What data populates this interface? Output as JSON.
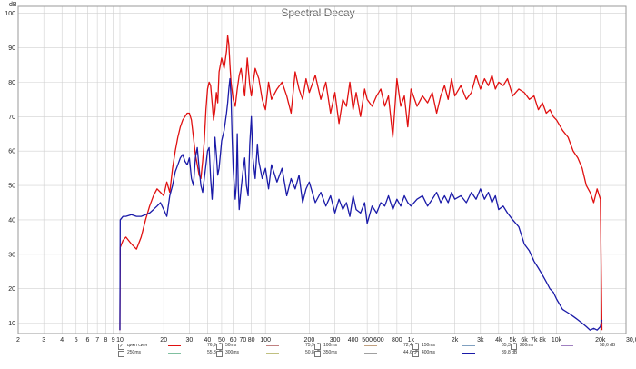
{
  "chart_data": {
    "type": "line",
    "title": "Spectral Decay",
    "xlabel": "",
    "ylabel": "",
    "x_unit": "Hz",
    "y_unit": "dB",
    "x_scale": "log",
    "xlim": [
      2,
      30000
    ],
    "ylim": [
      7,
      102
    ],
    "grid": true,
    "x_ticks": [
      2,
      3,
      4,
      5,
      6,
      7,
      8,
      9,
      10,
      20,
      30,
      40,
      50,
      60,
      70,
      80,
      100,
      200,
      300,
      400,
      500,
      600,
      800,
      1000,
      2000,
      3000,
      4000,
      5000,
      6000,
      7000,
      8000,
      10000,
      20000,
      30000
    ],
    "x_tick_labels": [
      "2",
      "3",
      "4",
      "5",
      "6",
      "7",
      "8",
      "9",
      "10",
      "20",
      "30",
      "40",
      "50",
      "60",
      "70",
      "80",
      "100",
      "200",
      "300",
      "400",
      "500",
      "600",
      "800",
      "1k",
      "2k",
      "3k",
      "4k",
      "5k",
      "6k",
      "7k",
      "8k",
      "10k",
      "20k",
      "30,0k Hz"
    ],
    "y_ticks": [
      10,
      20,
      30,
      40,
      50,
      60,
      70,
      80,
      90,
      100
    ],
    "y_tick_labels": [
      "10",
      "20",
      "30",
      "40",
      "50",
      "60",
      "70",
      "80",
      "90",
      "100"
    ],
    "series": [
      {
        "name": "цикл сигн",
        "color": "#e01010",
        "points": [
          [
            10,
            8
          ],
          [
            10.05,
            32
          ],
          [
            10.5,
            34
          ],
          [
            11,
            35
          ],
          [
            12,
            33
          ],
          [
            13,
            31.5
          ],
          [
            14,
            35
          ],
          [
            15,
            40
          ],
          [
            16,
            44
          ],
          [
            17,
            47
          ],
          [
            18,
            49
          ],
          [
            19,
            48
          ],
          [
            20,
            47
          ],
          [
            21,
            51
          ],
          [
            22,
            48
          ],
          [
            23,
            55
          ],
          [
            24,
            60
          ],
          [
            25,
            64
          ],
          [
            26,
            67
          ],
          [
            27,
            69
          ],
          [
            28,
            70
          ],
          [
            29,
            71
          ],
          [
            30,
            71
          ],
          [
            31,
            69
          ],
          [
            32,
            64
          ],
          [
            33,
            59
          ],
          [
            34,
            56
          ],
          [
            35,
            53
          ],
          [
            36,
            52
          ],
          [
            37,
            57
          ],
          [
            38,
            63
          ],
          [
            39,
            72
          ],
          [
            40,
            78
          ],
          [
            41,
            80
          ],
          [
            42,
            79
          ],
          [
            43,
            74
          ],
          [
            44,
            69
          ],
          [
            45,
            72
          ],
          [
            46,
            77
          ],
          [
            47,
            74
          ],
          [
            48,
            83
          ],
          [
            50,
            87
          ],
          [
            52,
            84
          ],
          [
            54,
            89
          ],
          [
            55,
            93.5
          ],
          [
            56,
            91
          ],
          [
            57,
            85
          ],
          [
            58,
            80
          ],
          [
            60,
            75
          ],
          [
            62,
            73
          ],
          [
            64,
            78
          ],
          [
            66,
            82
          ],
          [
            68,
            84
          ],
          [
            70,
            80
          ],
          [
            72,
            76
          ],
          [
            75,
            87
          ],
          [
            78,
            79
          ],
          [
            80,
            76
          ],
          [
            85,
            84
          ],
          [
            90,
            81
          ],
          [
            95,
            75
          ],
          [
            100,
            72
          ],
          [
            105,
            80
          ],
          [
            110,
            75
          ],
          [
            120,
            78
          ],
          [
            130,
            80
          ],
          [
            140,
            76
          ],
          [
            150,
            71
          ],
          [
            160,
            83
          ],
          [
            170,
            78
          ],
          [
            180,
            75
          ],
          [
            190,
            81
          ],
          [
            200,
            77
          ],
          [
            220,
            82
          ],
          [
            240,
            75
          ],
          [
            260,
            80
          ],
          [
            280,
            71
          ],
          [
            300,
            77
          ],
          [
            320,
            68
          ],
          [
            340,
            75
          ],
          [
            360,
            73
          ],
          [
            380,
            80
          ],
          [
            400,
            72
          ],
          [
            420,
            77
          ],
          [
            450,
            70
          ],
          [
            480,
            78
          ],
          [
            500,
            75
          ],
          [
            540,
            73
          ],
          [
            580,
            76
          ],
          [
            620,
            78
          ],
          [
            660,
            73
          ],
          [
            700,
            76
          ],
          [
            750,
            64
          ],
          [
            800,
            81
          ],
          [
            850,
            73
          ],
          [
            900,
            76
          ],
          [
            950,
            67
          ],
          [
            1000,
            78
          ],
          [
            1100,
            73
          ],
          [
            1200,
            76
          ],
          [
            1300,
            74
          ],
          [
            1400,
            77
          ],
          [
            1500,
            71
          ],
          [
            1600,
            76
          ],
          [
            1700,
            79
          ],
          [
            1800,
            75
          ],
          [
            1900,
            81
          ],
          [
            2000,
            76
          ],
          [
            2200,
            79
          ],
          [
            2400,
            75
          ],
          [
            2600,
            77
          ],
          [
            2800,
            82
          ],
          [
            3000,
            78
          ],
          [
            3200,
            81
          ],
          [
            3400,
            79
          ],
          [
            3600,
            82
          ],
          [
            3800,
            78
          ],
          [
            4000,
            80
          ],
          [
            4300,
            79
          ],
          [
            4600,
            81
          ],
          [
            5000,
            76
          ],
          [
            5500,
            78
          ],
          [
            6000,
            77
          ],
          [
            6500,
            75
          ],
          [
            7000,
            76
          ],
          [
            7500,
            72
          ],
          [
            8000,
            74
          ],
          [
            8500,
            71
          ],
          [
            9000,
            72
          ],
          [
            9500,
            70
          ],
          [
            10000,
            69
          ],
          [
            11000,
            66
          ],
          [
            12000,
            64
          ],
          [
            13000,
            60
          ],
          [
            14000,
            58
          ],
          [
            15000,
            55
          ],
          [
            16000,
            50
          ],
          [
            17000,
            48
          ],
          [
            18000,
            45
          ],
          [
            19000,
            49
          ],
          [
            20000,
            46
          ],
          [
            20500,
            8
          ]
        ]
      },
      {
        "name": "400ms",
        "color": "#1a1aa8",
        "points": [
          [
            10,
            8
          ],
          [
            10.05,
            40
          ],
          [
            10.5,
            41
          ],
          [
            11,
            41
          ],
          [
            12,
            41.5
          ],
          [
            13,
            41
          ],
          [
            14,
            41
          ],
          [
            15,
            41.5
          ],
          [
            16,
            42
          ],
          [
            17,
            43
          ],
          [
            18,
            44
          ],
          [
            19,
            45
          ],
          [
            20,
            43
          ],
          [
            21,
            41
          ],
          [
            22,
            47
          ],
          [
            23,
            50
          ],
          [
            24,
            54
          ],
          [
            25,
            56
          ],
          [
            26,
            58
          ],
          [
            27,
            59
          ],
          [
            28,
            57
          ],
          [
            29,
            56
          ],
          [
            30,
            58
          ],
          [
            31,
            52
          ],
          [
            32,
            50
          ],
          [
            33,
            58
          ],
          [
            34,
            61
          ],
          [
            35,
            55
          ],
          [
            36,
            50
          ],
          [
            37,
            48
          ],
          [
            38,
            52
          ],
          [
            39,
            56
          ],
          [
            40,
            60
          ],
          [
            41,
            61
          ],
          [
            42,
            52
          ],
          [
            43,
            46
          ],
          [
            44,
            54
          ],
          [
            45,
            64
          ],
          [
            46,
            59
          ],
          [
            47,
            53
          ],
          [
            48,
            55
          ],
          [
            50,
            63
          ],
          [
            52,
            66
          ],
          [
            54,
            71
          ],
          [
            55,
            74
          ],
          [
            56,
            78
          ],
          [
            57,
            81
          ],
          [
            58,
            76
          ],
          [
            59,
            64
          ],
          [
            60,
            55
          ],
          [
            62,
            46
          ],
          [
            63,
            50
          ],
          [
            64,
            65
          ],
          [
            65,
            50
          ],
          [
            66,
            43
          ],
          [
            68,
            49
          ],
          [
            70,
            54
          ],
          [
            72,
            58
          ],
          [
            74,
            50
          ],
          [
            76,
            47
          ],
          [
            78,
            62
          ],
          [
            80,
            70
          ],
          [
            82,
            58
          ],
          [
            85,
            52
          ],
          [
            88,
            62
          ],
          [
            90,
            57
          ],
          [
            95,
            52
          ],
          [
            100,
            55
          ],
          [
            105,
            49
          ],
          [
            110,
            56
          ],
          [
            120,
            51
          ],
          [
            130,
            55
          ],
          [
            140,
            47
          ],
          [
            150,
            52
          ],
          [
            160,
            49
          ],
          [
            170,
            53
          ],
          [
            180,
            45
          ],
          [
            190,
            49
          ],
          [
            200,
            51
          ],
          [
            220,
            45
          ],
          [
            240,
            48
          ],
          [
            260,
            44
          ],
          [
            280,
            47
          ],
          [
            300,
            42
          ],
          [
            320,
            46
          ],
          [
            340,
            43
          ],
          [
            360,
            45
          ],
          [
            380,
            41
          ],
          [
            400,
            47
          ],
          [
            420,
            43
          ],
          [
            450,
            42
          ],
          [
            480,
            45
          ],
          [
            500,
            39
          ],
          [
            540,
            44
          ],
          [
            580,
            42
          ],
          [
            620,
            45
          ],
          [
            660,
            44
          ],
          [
            700,
            47
          ],
          [
            750,
            43
          ],
          [
            800,
            46
          ],
          [
            850,
            44
          ],
          [
            900,
            47
          ],
          [
            950,
            45
          ],
          [
            1000,
            44
          ],
          [
            1100,
            46
          ],
          [
            1200,
            47
          ],
          [
            1300,
            44
          ],
          [
            1400,
            46
          ],
          [
            1500,
            48
          ],
          [
            1600,
            45
          ],
          [
            1700,
            47
          ],
          [
            1800,
            45
          ],
          [
            1900,
            48
          ],
          [
            2000,
            46
          ],
          [
            2200,
            47
          ],
          [
            2400,
            45
          ],
          [
            2600,
            48
          ],
          [
            2800,
            46
          ],
          [
            3000,
            49
          ],
          [
            3200,
            46
          ],
          [
            3400,
            48
          ],
          [
            3600,
            45
          ],
          [
            3800,
            47
          ],
          [
            4000,
            43
          ],
          [
            4300,
            44
          ],
          [
            4600,
            42
          ],
          [
            5000,
            40
          ],
          [
            5500,
            38
          ],
          [
            6000,
            33
          ],
          [
            6500,
            31
          ],
          [
            7000,
            28
          ],
          [
            7500,
            26
          ],
          [
            8000,
            24
          ],
          [
            8500,
            22
          ],
          [
            9000,
            20
          ],
          [
            9500,
            19
          ],
          [
            10000,
            17
          ],
          [
            11000,
            14
          ],
          [
            12000,
            13
          ],
          [
            13000,
            12
          ],
          [
            14000,
            11
          ],
          [
            15000,
            10
          ],
          [
            16000,
            9
          ],
          [
            17000,
            8
          ],
          [
            18000,
            8.5
          ],
          [
            19000,
            8
          ],
          [
            20000,
            9
          ],
          [
            20500,
            11
          ]
        ]
      }
    ]
  },
  "legend": {
    "items": [
      {
        "checked": true,
        "check_mark": "✓",
        "label": "цикл сигн",
        "color": "#e01010",
        "value": "76,9 dB"
      },
      {
        "checked": false,
        "check_mark": "",
        "label": "50ms",
        "color": "#c08080",
        "value": "75,9 dB"
      },
      {
        "checked": false,
        "check_mark": "",
        "label": "100ms",
        "color": "#c0a080",
        "value": "72,4 dB"
      },
      {
        "checked": false,
        "check_mark": "",
        "label": "150ms",
        "color": "#80a0c0",
        "value": "65,3 dB"
      },
      {
        "checked": false,
        "check_mark": "",
        "label": "200ms",
        "color": "#a080c0",
        "value": "58,6 dB"
      },
      {
        "checked": false,
        "check_mark": "",
        "label": "250ms",
        "color": "#80c0a0",
        "value": "55,3 dB"
      },
      {
        "checked": false,
        "check_mark": "",
        "label": "300ms",
        "color": "#c0c080",
        "value": "50,8 dB"
      },
      {
        "checked": false,
        "check_mark": "",
        "label": "350ms",
        "color": "#a0a0a0",
        "value": "44,6 dB"
      },
      {
        "checked": true,
        "check_mark": "✓",
        "label": "400ms",
        "color": "#1a1aa8",
        "value": "39,8 dB"
      }
    ]
  }
}
